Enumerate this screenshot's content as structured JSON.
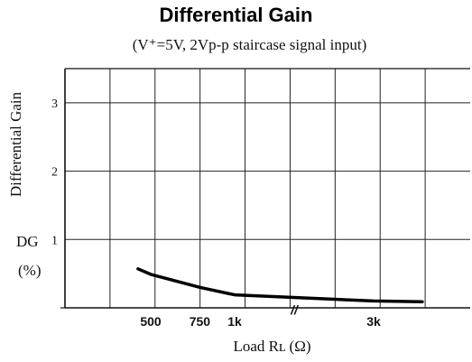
{
  "chart_data": {
    "type": "line",
    "title": "Differential Gain",
    "subtitle": "(V⁺=5V, 2Vp-p staircase signal input)",
    "ylabel": "Differential Gain",
    "ylabel_symbol": "DG",
    "ylabel_unit": "(%)",
    "xlabel": "Load Rʟ (Ω)",
    "ylim": [
      0,
      3.5
    ],
    "y_ticks": [
      "1",
      "2",
      "3"
    ],
    "x_ticks": [
      {
        "label": "500",
        "x": 500
      },
      {
        "label": "750",
        "x": 750
      },
      {
        "label": "1k",
        "x": 1000
      },
      {
        "label": "3k",
        "x": 3000
      }
    ],
    "axis_break_label": "//",
    "grid": true,
    "series": [
      {
        "points": [
          {
            "x": 450,
            "y": 0.57
          },
          {
            "x": 500,
            "y": 0.49
          },
          {
            "x": 750,
            "y": 0.3
          },
          {
            "x": 1000,
            "y": 0.19
          },
          {
            "x": 3000,
            "y": 0.1
          },
          {
            "x": 3700,
            "y": 0.09
          }
        ]
      }
    ]
  }
}
